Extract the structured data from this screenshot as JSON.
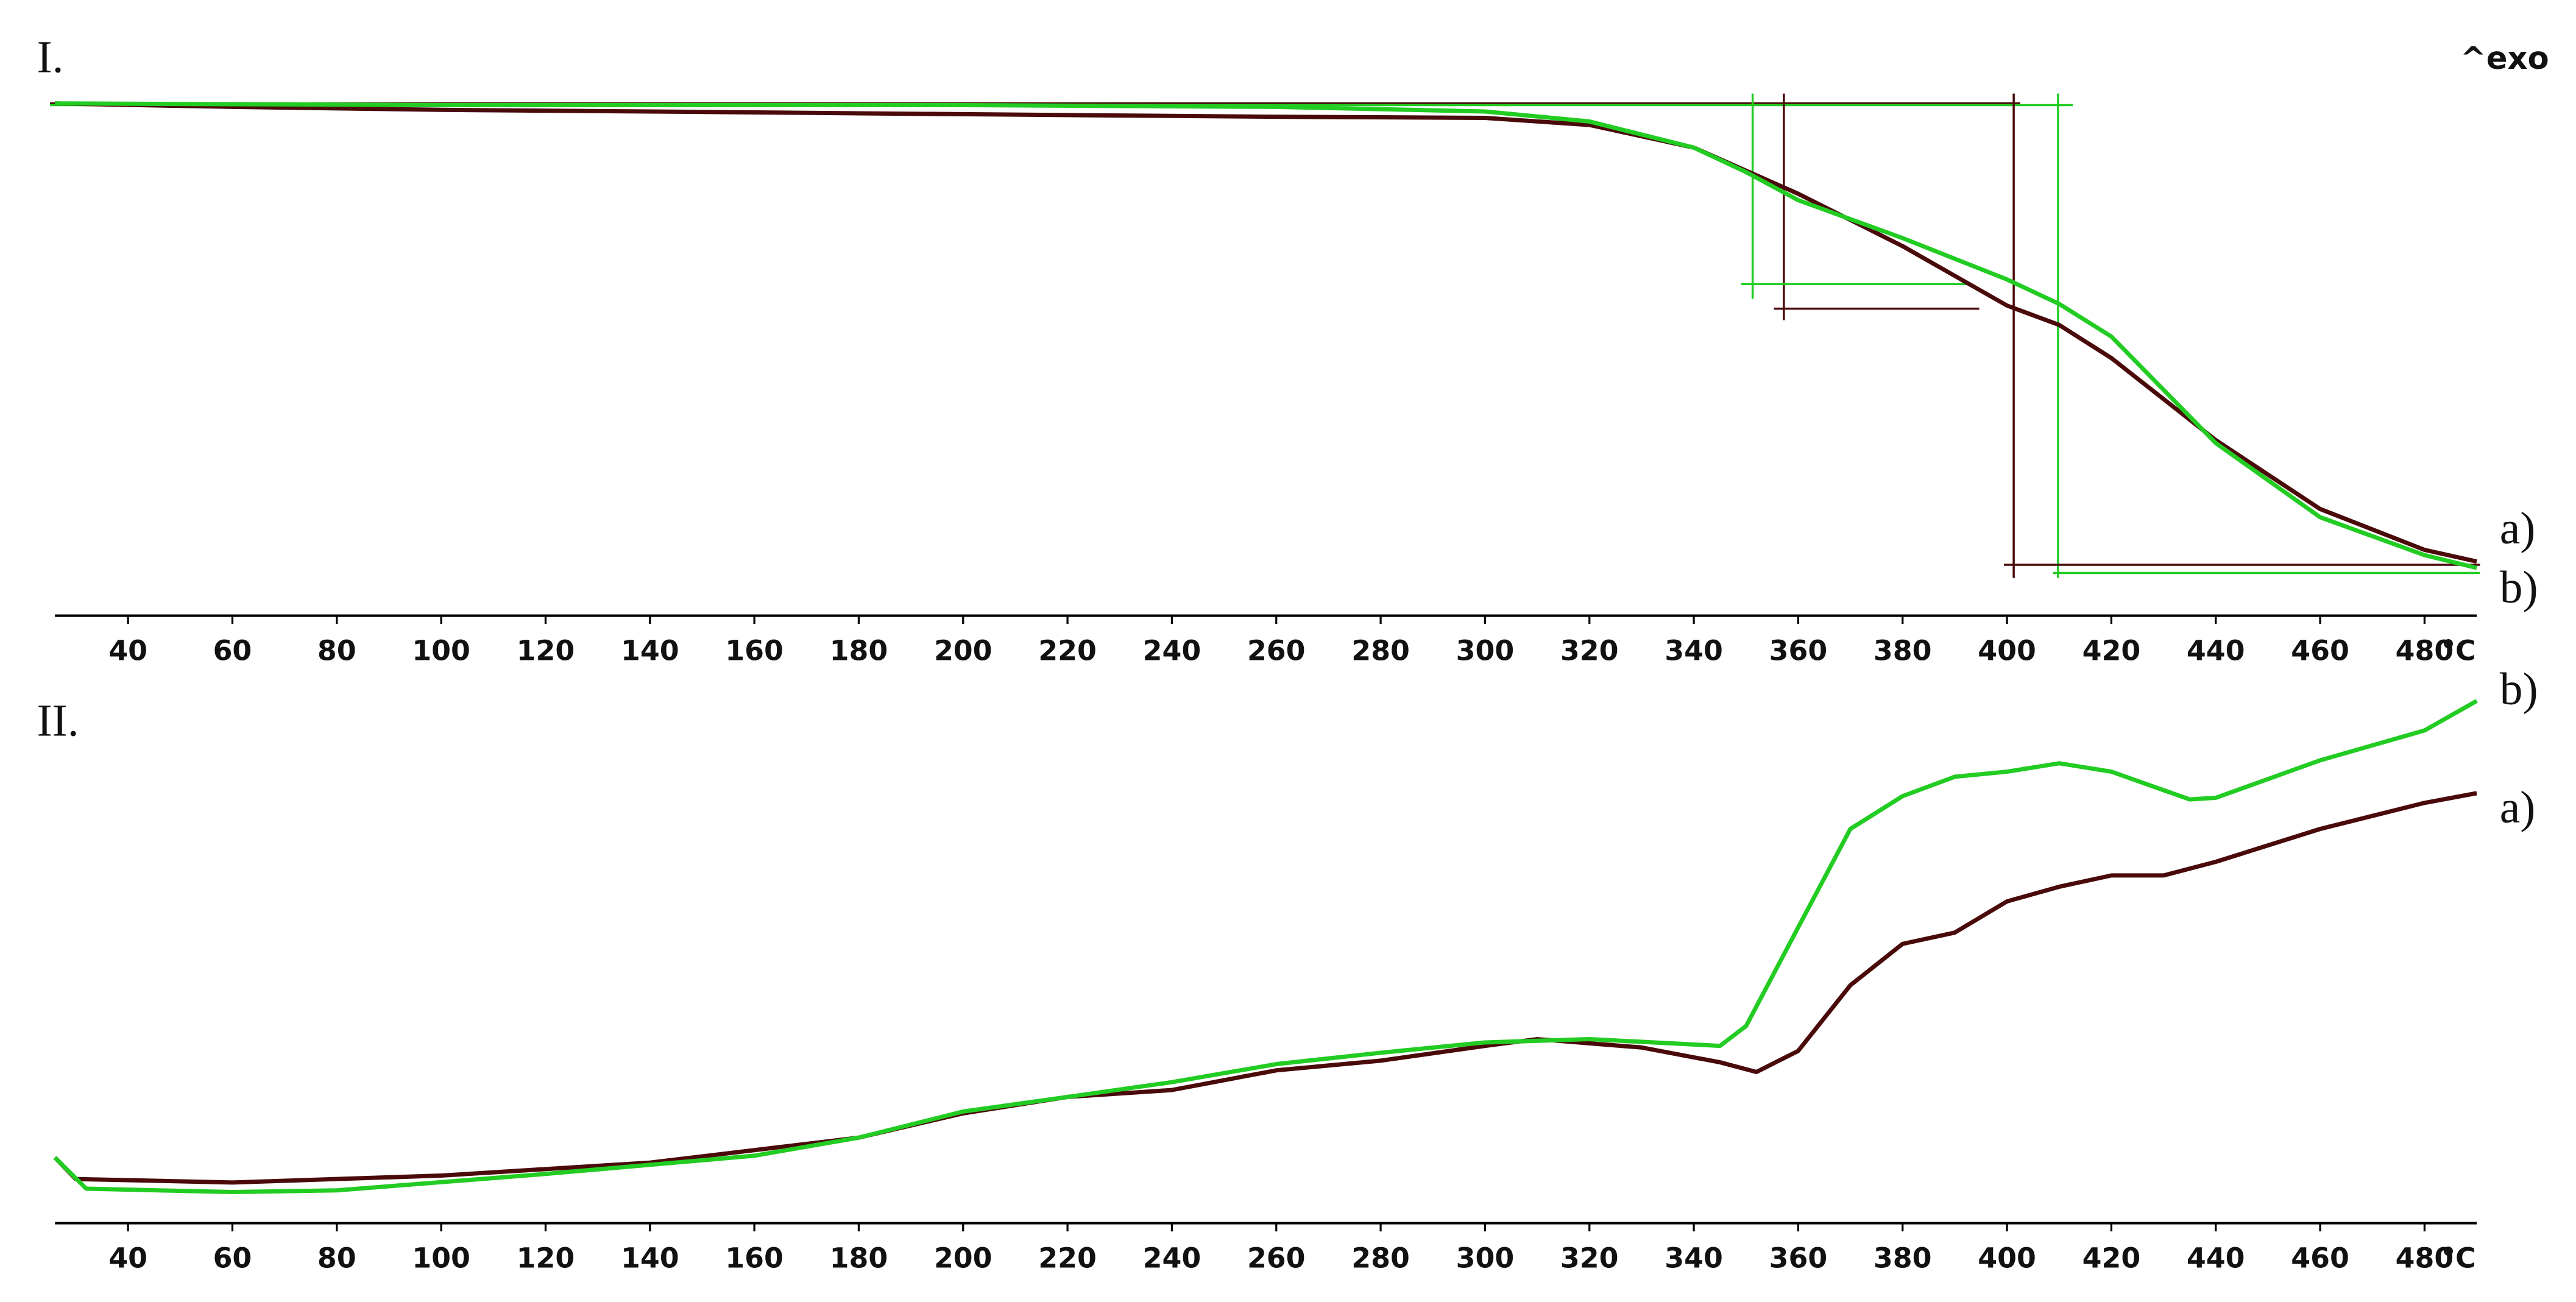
{
  "chart_data": [
    {
      "type": "line",
      "panel_label": "I.",
      "annotation": "^exo",
      "x_unit": "°C",
      "xlim": [
        26,
        490
      ],
      "xticks": [
        40,
        60,
        80,
        100,
        120,
        140,
        160,
        180,
        200,
        220,
        240,
        260,
        280,
        300,
        320,
        340,
        360,
        380,
        400,
        420,
        440,
        460,
        480
      ],
      "ylim": [
        0,
        100
      ],
      "series": [
        {
          "name": "a)",
          "color": "#4a0a0a",
          "x": [
            26,
            60,
            100,
            140,
            180,
            220,
            260,
            300,
            320,
            340,
            360,
            380,
            400,
            410,
            420,
            440,
            460,
            480,
            490
          ],
          "values": [
            87.9,
            87.3,
            86.8,
            86.5,
            86.2,
            85.9,
            85.6,
            85.4,
            84.2,
            80.3,
            72.4,
            63.4,
            53.2,
            49.9,
            44.2,
            30.1,
            18.3,
            11.3,
            9.3
          ]
        },
        {
          "name": "b)",
          "color": "#22cc22",
          "x": [
            26,
            100,
            200,
            260,
            300,
            320,
            340,
            350,
            360,
            380,
            400,
            410,
            420,
            440,
            460,
            480,
            490
          ],
          "values": [
            87.9,
            87.6,
            87.6,
            87.3,
            86.5,
            84.8,
            80.3,
            76.1,
            71.3,
            64.8,
            57.7,
            53.5,
            47.9,
            29.6,
            16.9,
            10.4,
            8.2
          ]
        }
      ]
    },
    {
      "type": "line",
      "panel_label": "II.",
      "x_unit": "°C",
      "xlim": [
        26,
        490
      ],
      "xticks": [
        40,
        60,
        80,
        100,
        120,
        140,
        160,
        180,
        200,
        220,
        240,
        260,
        280,
        300,
        320,
        340,
        360,
        380,
        400,
        420,
        440,
        460,
        480
      ],
      "ylim": [
        0,
        100
      ],
      "series": [
        {
          "name": "a)",
          "color": "#4a0a0a",
          "x": [
            26,
            30,
            60,
            100,
            140,
            180,
            200,
            220,
            240,
            260,
            280,
            300,
            310,
            330,
            345,
            352,
            360,
            370,
            380,
            390,
            400,
            410,
            420,
            430,
            440,
            460,
            480,
            490
          ],
          "values": [
            11.6,
            7.8,
            7.2,
            8.4,
            10.7,
            15.1,
            19.4,
            22.3,
            23.5,
            27.0,
            28.7,
            31.3,
            32.5,
            31.0,
            28.4,
            26.7,
            30.4,
            42.0,
            49.3,
            51.3,
            56.8,
            59.4,
            61.4,
            61.4,
            63.8,
            69.6,
            74.2,
            75.9
          ]
        },
        {
          "name": "b)",
          "color": "#22cc22",
          "x": [
            26,
            32,
            60,
            80,
            120,
            160,
            180,
            200,
            220,
            240,
            260,
            280,
            300,
            320,
            345,
            350,
            360,
            370,
            380,
            390,
            400,
            410,
            420,
            435,
            440,
            460,
            480,
            490
          ],
          "values": [
            11.6,
            6.1,
            5.5,
            5.8,
            8.7,
            11.9,
            15.1,
            19.7,
            22.3,
            24.9,
            28.1,
            30.1,
            31.9,
            32.5,
            31.3,
            34.8,
            52.2,
            69.6,
            75.4,
            78.8,
            79.7,
            81.2,
            79.7,
            74.8,
            75.1,
            81.7,
            87.0,
            92.2
          ]
        }
      ]
    }
  ]
}
